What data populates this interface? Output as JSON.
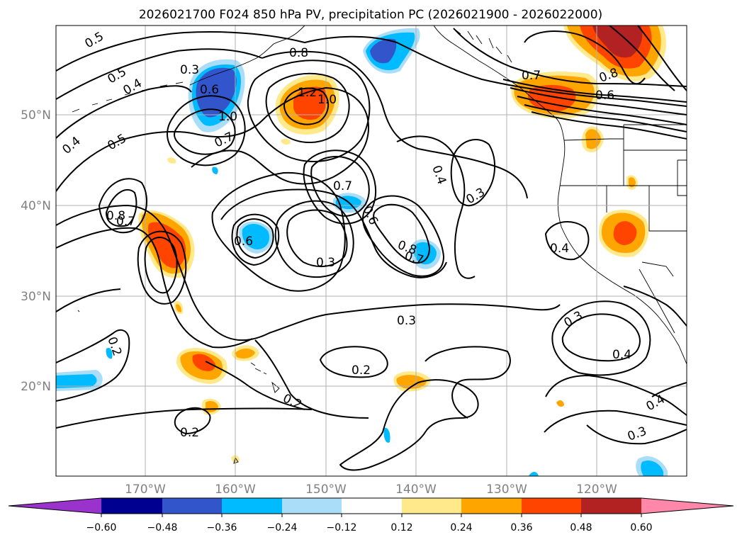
{
  "title": "2026021700 F024 850 hPa PV, precipitation PC (2026021900 - 2026022000)",
  "lon_labels": [
    "170°W",
    "160°W",
    "150°W",
    "140°W",
    "130°W",
    "120°W"
  ],
  "lat_labels": [
    "50°N",
    "40°N",
    "30°N",
    "20°N"
  ],
  "colorbar": {
    "tick_labels": [
      "−0.60",
      "−0.48",
      "−0.36",
      "−0.24",
      "−0.12",
      "0.12",
      "0.24",
      "0.36",
      "0.48",
      "0.60"
    ],
    "colors": [
      "#9933cc",
      "#000090",
      "#3355cc",
      "#00bbff",
      "#aaddf8",
      "#ffffff",
      "#ffe98a",
      "#ffa500",
      "#ff4400",
      "#b22222",
      "#ff88aa"
    ]
  },
  "contour_labels": [
    "0.5",
    "0.8",
    "0.3",
    "0.6",
    "0.5",
    "0.4",
    "1.0",
    "1.2",
    "1.0",
    "0.5",
    "0.4",
    "0.7",
    "0.7",
    "0.6",
    "0.8",
    "0.4",
    "0.3",
    "0.7",
    "0.6",
    "0.8",
    "0.7",
    "0.8",
    "0.7",
    "0.6",
    "0.3",
    "0.3",
    "0.4",
    "0.2",
    "0.2",
    "0.2",
    "0.2",
    "0.3",
    "0.4",
    "0.4",
    "0.3"
  ]
}
